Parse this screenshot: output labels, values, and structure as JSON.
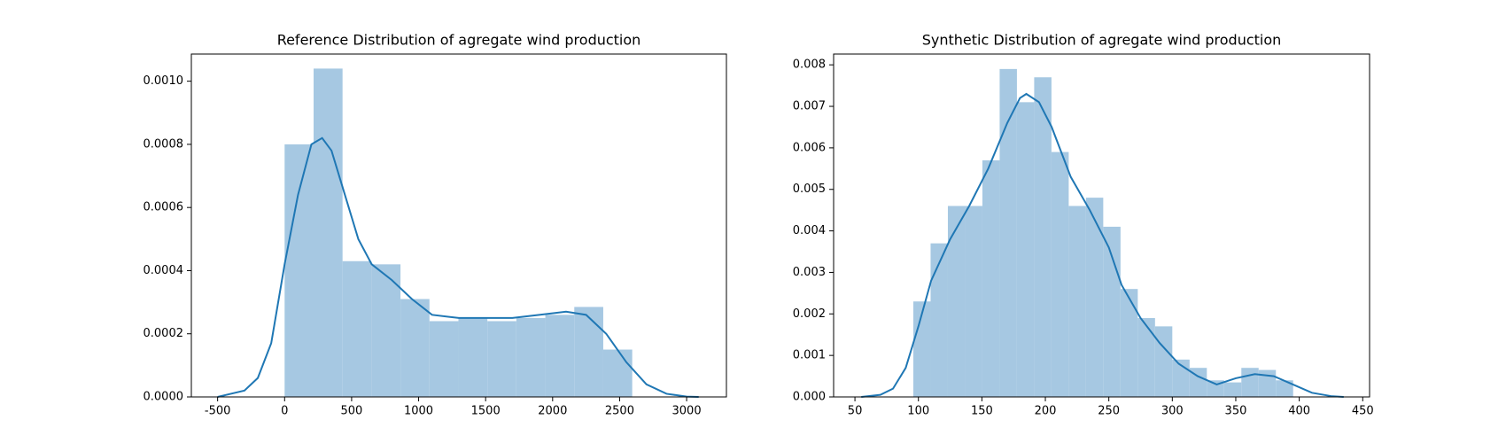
{
  "chart_data": [
    {
      "type": "histogram",
      "title": "Reference Distribution of agregate wind production",
      "bins": [
        0,
        216.2,
        432.3,
        648.5,
        864.7,
        1080.8,
        1297,
        1513.2,
        1729.3,
        1945.5,
        2161.7,
        2377.8,
        2594
      ],
      "values": [
        0.0008,
        0.00104,
        0.00043,
        0.00042,
        0.00031,
        0.00024,
        0.00025,
        0.00024,
        0.00025,
        0.00026,
        0.000285,
        0.00015
      ],
      "color": "#a6c8e2",
      "kde": {
        "color": "#1f77b4",
        "x": [
          -500,
          -300,
          -200,
          -100,
          0,
          100,
          200,
          280,
          350,
          450,
          550,
          650,
          800,
          950,
          1100,
          1300,
          1500,
          1700,
          1900,
          2100,
          2250,
          2400,
          2550,
          2700,
          2850,
          3000,
          3090
        ],
        "y": [
          0,
          2e-05,
          6e-05,
          0.00017,
          0.00042,
          0.00064,
          0.0008,
          0.00082,
          0.00078,
          0.00064,
          0.0005,
          0.00042,
          0.00037,
          0.00031,
          0.00026,
          0.00025,
          0.00025,
          0.00025,
          0.00026,
          0.00027,
          0.00026,
          0.0002,
          0.00011,
          4e-05,
          1e-05,
          1e-06,
          0
        ]
      },
      "xlim": [
        -696,
        3297
      ],
      "xticks": [
        -500,
        0,
        500,
        1000,
        1500,
        2000,
        2500,
        3000
      ],
      "ylim": [
        0,
        0.001086
      ],
      "yticks": [
        {
          "value": 0,
          "label": "0.0000"
        },
        {
          "value": 0.0002,
          "label": "0.0002"
        },
        {
          "value": 0.0004,
          "label": "0.0004"
        },
        {
          "value": 0.0006,
          "label": "0.0006"
        },
        {
          "value": 0.0008,
          "label": "0.0008"
        },
        {
          "value": 0.001,
          "label": "0.0010"
        }
      ]
    },
    {
      "type": "histogram",
      "title": "Synthetic Distribution of agregate wind production",
      "bins": [
        96,
        109.6,
        123.2,
        136.8,
        150.4,
        164,
        177.6,
        191.2,
        204.8,
        218.4,
        232,
        245.6,
        259.2,
        272.8,
        286.4,
        300,
        313.6,
        327.2,
        340.8,
        354.4,
        368,
        381.6,
        395.2
      ],
      "values": [
        0.0023,
        0.0037,
        0.0046,
        0.0046,
        0.0057,
        0.0079,
        0.0071,
        0.0077,
        0.0059,
        0.0046,
        0.0048,
        0.0041,
        0.0026,
        0.0019,
        0.0017,
        0.0009,
        0.0007,
        0.0004,
        0.00035,
        0.0007,
        0.00065,
        0.0004
      ],
      "color": "#a6c8e2",
      "kde": {
        "color": "#1f77b4",
        "x": [
          55,
          70,
          80,
          90,
          100,
          110,
          125,
          140,
          155,
          170,
          180,
          185,
          195,
          205,
          220,
          235,
          250,
          260,
          275,
          290,
          305,
          320,
          335,
          350,
          365,
          380,
          395,
          410,
          425,
          435
        ],
        "y": [
          0,
          5e-05,
          0.0002,
          0.0007,
          0.0017,
          0.0028,
          0.0038,
          0.0046,
          0.0055,
          0.0066,
          0.0072,
          0.0073,
          0.0071,
          0.0065,
          0.0053,
          0.0045,
          0.0036,
          0.0027,
          0.0019,
          0.0013,
          0.0008,
          0.0005,
          0.0003,
          0.00045,
          0.00055,
          0.0005,
          0.0003,
          0.0001,
          2e-05,
          0
        ]
      },
      "xlim": [
        33.2,
        455.4
      ],
      "xticks": [
        50,
        100,
        150,
        200,
        250,
        300,
        350,
        400,
        450
      ],
      "ylim": [
        0,
        0.00826
      ],
      "yticks": [
        {
          "value": 0,
          "label": "0.000"
        },
        {
          "value": 0.001,
          "label": "0.001"
        },
        {
          "value": 0.002,
          "label": "0.002"
        },
        {
          "value": 0.003,
          "label": "0.003"
        },
        {
          "value": 0.004,
          "label": "0.004"
        },
        {
          "value": 0.005,
          "label": "0.005"
        },
        {
          "value": 0.006,
          "label": "0.006"
        },
        {
          "value": 0.007,
          "label": "0.007"
        },
        {
          "value": 0.008,
          "label": "0.008"
        }
      ]
    }
  ]
}
